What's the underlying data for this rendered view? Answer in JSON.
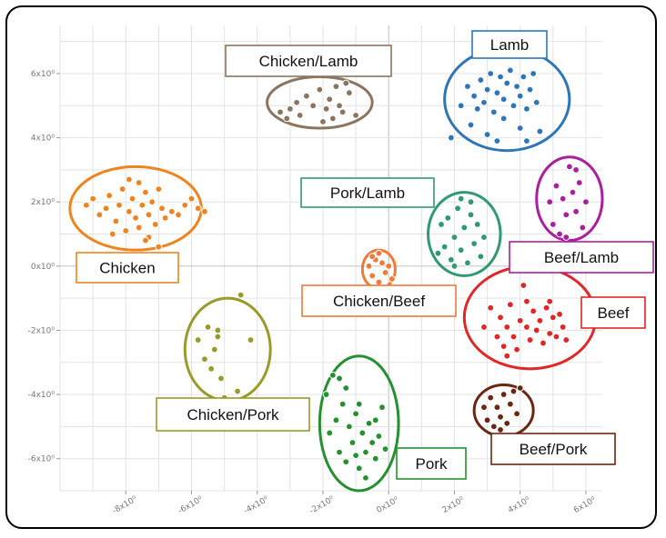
{
  "chart_data": {
    "type": "scatter",
    "title": "",
    "xlabel": "",
    "ylabel": "",
    "xlim": [
      -10,
      6.5
    ],
    "ylim": [
      -7,
      7.5
    ],
    "x_ticks": [
      -8,
      -6,
      -4,
      -2,
      0,
      2,
      4,
      6
    ],
    "y_ticks": [
      -6,
      -4,
      -2,
      0,
      2,
      4,
      6
    ],
    "x_tick_labels": [
      "-8x10⁰",
      "-6x10⁰",
      "-4x10⁰",
      "-2x10⁰",
      "0x10⁰",
      "2x10⁰",
      "4x10⁰",
      "6x10⁰"
    ],
    "y_tick_labels": [
      "-6x10⁰",
      "-4x10⁰",
      "-2x10⁰",
      "0x10⁰",
      "2x10⁰",
      "4x10⁰",
      "6x10⁰"
    ],
    "grid": true,
    "series": [
      {
        "name": "Chicken",
        "color": "#ee8420",
        "ellipse": {
          "cx": -7.7,
          "cy": 1.8,
          "rx": 2.0,
          "ry": 1.3
        },
        "points": [
          [
            -9.2,
            1.9
          ],
          [
            -9.0,
            2.1
          ],
          [
            -8.8,
            1.6
          ],
          [
            -8.6,
            1.8
          ],
          [
            -8.5,
            2.2
          ],
          [
            -8.3,
            1.4
          ],
          [
            -8.2,
            1.9
          ],
          [
            -8.1,
            2.4
          ],
          [
            -8.0,
            1.1
          ],
          [
            -7.9,
            1.7
          ],
          [
            -7.8,
            2.1
          ],
          [
            -7.7,
            1.5
          ],
          [
            -7.6,
            2.6
          ],
          [
            -7.6,
            1.2
          ],
          [
            -7.5,
            1.9
          ],
          [
            -7.4,
            2.3
          ],
          [
            -7.3,
            0.9
          ],
          [
            -7.3,
            1.6
          ],
          [
            -7.2,
            2.0
          ],
          [
            -7.1,
            1.3
          ],
          [
            -7.0,
            0.6
          ],
          [
            -7.0,
            2.4
          ],
          [
            -6.9,
            1.8
          ],
          [
            -6.8,
            1.5
          ],
          [
            -6.6,
            1.7
          ],
          [
            -6.4,
            1.6
          ],
          [
            -6.2,
            1.9
          ],
          [
            -6.0,
            2.1
          ],
          [
            -5.8,
            1.8
          ],
          [
            -5.6,
            1.7
          ],
          [
            -8.4,
            1.0
          ],
          [
            -7.9,
            2.7
          ],
          [
            -7.4,
            0.8
          ]
        ]
      },
      {
        "name": "Chicken/Lamb",
        "color": "#8a7560",
        "ellipse": {
          "cx": -2.1,
          "cy": 5.1,
          "rx": 1.6,
          "ry": 0.8
        },
        "points": [
          [
            -3.3,
            4.8
          ],
          [
            -3.1,
            4.6
          ],
          [
            -3.0,
            4.9
          ],
          [
            -2.8,
            5.1
          ],
          [
            -2.7,
            4.7
          ],
          [
            -2.5,
            5.3
          ],
          [
            -2.3,
            5.0
          ],
          [
            -2.1,
            5.5
          ],
          [
            -1.9,
            4.9
          ],
          [
            -1.8,
            5.2
          ],
          [
            -1.7,
            4.6
          ],
          [
            -1.6,
            5.6
          ],
          [
            -1.5,
            5.0
          ],
          [
            -1.4,
            4.8
          ],
          [
            -1.2,
            5.4
          ],
          [
            -1.0,
            4.7
          ],
          [
            -2.0,
            4.5
          ],
          [
            -1.3,
            5.7
          ]
        ]
      },
      {
        "name": "Lamb",
        "color": "#2e76b8",
        "ellipse": {
          "cx": 3.6,
          "cy": 5.2,
          "rx": 1.9,
          "ry": 1.6
        },
        "points": [
          [
            1.9,
            4.0
          ],
          [
            2.2,
            5.0
          ],
          [
            2.4,
            5.6
          ],
          [
            2.5,
            4.4
          ],
          [
            2.6,
            5.3
          ],
          [
            2.8,
            5.8
          ],
          [
            2.9,
            5.1
          ],
          [
            3.0,
            4.1
          ],
          [
            3.0,
            5.5
          ],
          [
            3.1,
            6.0
          ],
          [
            3.2,
            4.8
          ],
          [
            3.3,
            5.4
          ],
          [
            3.4,
            5.9
          ],
          [
            3.5,
            5.2
          ],
          [
            3.5,
            4.6
          ],
          [
            3.6,
            5.7
          ],
          [
            3.7,
            6.1
          ],
          [
            3.8,
            5.0
          ],
          [
            3.9,
            5.6
          ],
          [
            4.0,
            4.3
          ],
          [
            4.0,
            5.3
          ],
          [
            4.1,
            5.9
          ],
          [
            4.2,
            4.9
          ],
          [
            4.3,
            5.5
          ],
          [
            4.4,
            6.0
          ],
          [
            4.5,
            5.1
          ],
          [
            4.6,
            4.2
          ],
          [
            2.7,
            4.9
          ],
          [
            3.3,
            3.9
          ],
          [
            4.2,
            3.9
          ]
        ]
      },
      {
        "name": "Pork/Lamb",
        "color": "#2f9a72",
        "ellipse": {
          "cx": 2.3,
          "cy": 1.0,
          "rx": 1.1,
          "ry": 1.3
        },
        "points": [
          [
            1.5,
            0.4
          ],
          [
            1.6,
            1.3
          ],
          [
            1.7,
            0.6
          ],
          [
            1.8,
            1.5
          ],
          [
            1.9,
            0.2
          ],
          [
            2.0,
            0.9
          ],
          [
            2.1,
            1.8
          ],
          [
            2.2,
            0.5
          ],
          [
            2.2,
            2.1
          ],
          [
            2.3,
            1.2
          ],
          [
            2.4,
            0.1
          ],
          [
            2.5,
            1.6
          ],
          [
            2.6,
            0.7
          ],
          [
            2.7,
            1.3
          ],
          [
            2.8,
            0.3
          ],
          [
            2.9,
            0.9
          ],
          [
            2.0,
            0.0
          ],
          [
            2.5,
            2.0
          ]
        ]
      },
      {
        "name": "Beef/Lamb",
        "color": "#a8209e",
        "ellipse": {
          "cx": 5.5,
          "cy": 2.1,
          "rx": 1.0,
          "ry": 1.3
        },
        "points": [
          [
            4.9,
            2.0
          ],
          [
            5.0,
            1.3
          ],
          [
            5.1,
            2.5
          ],
          [
            5.2,
            1.0
          ],
          [
            5.3,
            2.1
          ],
          [
            5.4,
            1.6
          ],
          [
            5.5,
            3.1
          ],
          [
            5.6,
            2.3
          ],
          [
            5.7,
            1.7
          ],
          [
            5.8,
            2.6
          ],
          [
            5.9,
            1.2
          ],
          [
            6.0,
            2.0
          ],
          [
            5.4,
            0.9
          ],
          [
            5.7,
            3.0
          ]
        ]
      },
      {
        "name": "Chicken/Beef",
        "color": "#ef7a3a",
        "ellipse": {
          "cx": -0.3,
          "cy": -0.1,
          "rx": 0.5,
          "ry": 0.6
        },
        "points": [
          [
            -0.6,
            0.0
          ],
          [
            -0.5,
            -0.3
          ],
          [
            -0.4,
            0.2
          ],
          [
            -0.3,
            -0.5
          ],
          [
            -0.2,
            0.1
          ],
          [
            -0.1,
            -0.2
          ],
          [
            0.0,
            0.0
          ],
          [
            -0.3,
            0.4
          ],
          [
            -0.5,
            0.3
          ],
          [
            0.1,
            -0.4
          ]
        ]
      },
      {
        "name": "Beef",
        "color": "#e02626",
        "ellipse": {
          "cx": 4.3,
          "cy": -1.6,
          "rx": 2.0,
          "ry": 1.6
        },
        "points": [
          [
            2.9,
            -1.9
          ],
          [
            3.1,
            -1.3
          ],
          [
            3.3,
            -2.2
          ],
          [
            3.4,
            -1.6
          ],
          [
            3.5,
            -2.5
          ],
          [
            3.6,
            -1.9
          ],
          [
            3.7,
            -1.2
          ],
          [
            3.8,
            -2.2
          ],
          [
            3.9,
            -2.6
          ],
          [
            4.0,
            -1.7
          ],
          [
            4.1,
            -0.6
          ],
          [
            4.2,
            -1.9
          ],
          [
            4.3,
            -2.3
          ],
          [
            4.4,
            -1.4
          ],
          [
            4.5,
            -2.0
          ],
          [
            4.6,
            -1.7
          ],
          [
            4.7,
            -2.4
          ],
          [
            4.8,
            -1.3
          ],
          [
            4.9,
            -2.1
          ],
          [
            5.0,
            -1.6
          ],
          [
            5.1,
            -2.2
          ],
          [
            5.2,
            -1.5
          ],
          [
            5.3,
            -1.9
          ],
          [
            5.4,
            -2.3
          ],
          [
            4.2,
            -1.1
          ],
          [
            3.6,
            -2.8
          ],
          [
            4.9,
            -1.1
          ]
        ]
      },
      {
        "name": "Chicken/Pork",
        "color": "#9a9a2a",
        "ellipse": {
          "cx": -4.9,
          "cy": -2.6,
          "rx": 1.3,
          "ry": 1.6
        },
        "points": [
          [
            -5.8,
            -2.3
          ],
          [
            -5.6,
            -2.9
          ],
          [
            -5.5,
            -1.9
          ],
          [
            -5.4,
            -3.2
          ],
          [
            -5.3,
            -2.6
          ],
          [
            -5.2,
            -2.2
          ],
          [
            -5.1,
            -3.5
          ],
          [
            -5.0,
            -4.1
          ],
          [
            -4.5,
            -0.9
          ],
          [
            -4.2,
            -2.3
          ],
          [
            -4.6,
            -3.9
          ],
          [
            -5.2,
            -2.0
          ]
        ]
      },
      {
        "name": "Pork",
        "color": "#249030",
        "ellipse": {
          "cx": -0.9,
          "cy": -4.9,
          "rx": 1.2,
          "ry": 2.1
        },
        "points": [
          [
            -1.9,
            -4.0
          ],
          [
            -1.8,
            -5.2
          ],
          [
            -1.7,
            -3.4
          ],
          [
            -1.6,
            -4.8
          ],
          [
            -1.5,
            -5.8
          ],
          [
            -1.4,
            -4.3
          ],
          [
            -1.3,
            -6.1
          ],
          [
            -1.2,
            -5.0
          ],
          [
            -1.1,
            -5.5
          ],
          [
            -1.0,
            -4.6
          ],
          [
            -0.9,
            -6.3
          ],
          [
            -0.8,
            -5.2
          ],
          [
            -0.7,
            -5.8
          ],
          [
            -0.6,
            -4.9
          ],
          [
            -0.5,
            -5.5
          ],
          [
            -0.4,
            -6.0
          ],
          [
            -0.3,
            -5.3
          ],
          [
            -0.2,
            -4.4
          ],
          [
            -0.1,
            -5.7
          ],
          [
            -1.3,
            -3.8
          ],
          [
            -0.7,
            -6.6
          ],
          [
            -1.0,
            -5.9
          ],
          [
            -0.4,
            -4.8
          ],
          [
            -1.5,
            -3.5
          ],
          [
            -0.9,
            -4.3
          ]
        ]
      },
      {
        "name": "Beef/Pork",
        "color": "#6b2612",
        "ellipse": {
          "cx": 3.5,
          "cy": -4.5,
          "rx": 0.9,
          "ry": 0.8
        },
        "points": [
          [
            2.9,
            -4.4
          ],
          [
            3.0,
            -4.8
          ],
          [
            3.1,
            -4.1
          ],
          [
            3.2,
            -5.0
          ],
          [
            3.3,
            -4.4
          ],
          [
            3.4,
            -4.7
          ],
          [
            3.5,
            -4.0
          ],
          [
            3.6,
            -4.9
          ],
          [
            3.7,
            -4.3
          ],
          [
            3.8,
            -3.9
          ],
          [
            3.9,
            -4.6
          ],
          [
            4.0,
            -3.8
          ],
          [
            3.4,
            -5.1
          ]
        ]
      }
    ],
    "labels": [
      {
        "text": "Chicken/Lamb",
        "color": "#8a7560"
      },
      {
        "text": "Lamb",
        "color": "#2e76b8"
      },
      {
        "text": "Pork/Lamb",
        "color": "#2f9a72"
      },
      {
        "text": "Chicken",
        "color": "#ee8420"
      },
      {
        "text": "Beef/Lamb",
        "color": "#a8209e"
      },
      {
        "text": "Chicken/Beef",
        "color": "#ef7a3a"
      },
      {
        "text": "Beef",
        "color": "#e02626"
      },
      {
        "text": "Chicken/Pork",
        "color": "#9a9a2a"
      },
      {
        "text": "Pork",
        "color": "#249030"
      },
      {
        "text": "Beef/Pork",
        "color": "#6b2612"
      }
    ]
  }
}
